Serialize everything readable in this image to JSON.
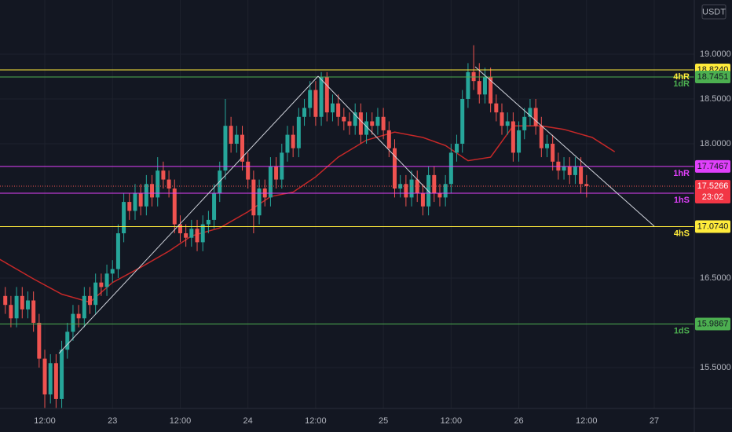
{
  "chart_data": {
    "type": "candlestick",
    "currency": "USDT",
    "up_color": "#26a69a",
    "down_color": "#ef5350",
    "xlim": [
      4.064,
      127.097
    ],
    "ylim": [
      15.044,
      19.605
    ],
    "yticks": [
      {
        "value": 15.5,
        "label": "15.5000"
      },
      {
        "value": 16.5,
        "label": "16.5000"
      },
      {
        "value": 18,
        "label": "18.0000"
      },
      {
        "value": 18.5,
        "label": "18.5000"
      },
      {
        "value": 19,
        "label": "19.0000"
      }
    ],
    "xticks": [
      {
        "value": 12,
        "label": "12:00"
      },
      {
        "value": 24,
        "label": "23"
      },
      {
        "value": 36,
        "label": "12:00"
      },
      {
        "value": 48,
        "label": "24"
      },
      {
        "value": 60,
        "label": "12:00"
      },
      {
        "value": 72,
        "label": "25"
      },
      {
        "value": 84,
        "label": "12:00"
      },
      {
        "value": 96,
        "label": "26"
      },
      {
        "value": 108,
        "label": "12:00"
      },
      {
        "value": 120,
        "label": "27"
      }
    ],
    "x": [
      5,
      6,
      7,
      8,
      9,
      10,
      11,
      12,
      13,
      14,
      15,
      16,
      17,
      18,
      19,
      20,
      21,
      22,
      23,
      24,
      25,
      26,
      27,
      28,
      29,
      30,
      31,
      32,
      33,
      34,
      35,
      36,
      37,
      38,
      39,
      40,
      41,
      42,
      43,
      44,
      45,
      46,
      47,
      48,
      49,
      50,
      51,
      52,
      53,
      54,
      55,
      56,
      57,
      58,
      59,
      60,
      61,
      62,
      63,
      64,
      65,
      66,
      67,
      68,
      69,
      70,
      71,
      72,
      73,
      74,
      75,
      76,
      77,
      78,
      79,
      80,
      81,
      82,
      83,
      84,
      85,
      86,
      87,
      88,
      89,
      90,
      91,
      92,
      93,
      94,
      95,
      96,
      97,
      98,
      99,
      100,
      101,
      102,
      103,
      104,
      105,
      106,
      107,
      108
    ],
    "open": [
      16.3,
      16.2,
      16.05,
      16.3,
      16.15,
      16.25,
      16.0,
      15.6,
      15.2,
      15.55,
      15.15,
      15.7,
      15.9,
      16.1,
      16.05,
      16.3,
      16.2,
      16.45,
      16.4,
      16.55,
      16.6,
      17.0,
      17.35,
      17.25,
      17.45,
      17.3,
      17.55,
      17.4,
      17.7,
      17.6,
      17.5,
      17.1,
      17.0,
      16.95,
      17.05,
      16.9,
      17.1,
      17.15,
      17.45,
      17.7,
      18.2,
      18.0,
      18.1,
      17.8,
      17.6,
      17.2,
      17.5,
      17.4,
      17.75,
      17.6,
      17.9,
      18.1,
      17.95,
      18.3,
      18.4,
      18.6,
      18.3,
      18.75,
      18.35,
      18.45,
      18.3,
      18.25,
      18.2,
      18.35,
      18.1,
      18.25,
      18.2,
      18.3,
      18.15,
      17.95,
      17.5,
      17.55,
      17.4,
      17.6,
      17.45,
      17.3,
      17.65,
      17.45,
      17.4,
      17.55,
      17.9,
      18.0,
      18.5,
      18.8,
      18.7,
      18.55,
      18.75,
      18.45,
      18.35,
      18.2,
      18.25,
      17.9,
      18.15,
      18.3,
      18.4,
      18.2,
      17.95,
      18.0,
      17.8,
      17.7,
      17.75,
      17.65,
      17.75,
      17.55
    ],
    "high": [
      16.4,
      16.3,
      16.4,
      16.4,
      16.35,
      16.35,
      16.1,
      15.7,
      15.65,
      15.65,
      15.8,
      16.0,
      16.2,
      16.2,
      16.4,
      16.4,
      16.55,
      16.55,
      16.65,
      16.7,
      17.1,
      17.45,
      17.45,
      17.55,
      17.55,
      17.65,
      17.65,
      17.85,
      17.8,
      17.7,
      17.6,
      17.2,
      17.1,
      17.15,
      17.15,
      17.2,
      17.25,
      17.55,
      17.8,
      18.5,
      18.3,
      18.2,
      18.2,
      17.9,
      17.7,
      17.6,
      17.6,
      17.85,
      17.85,
      18.0,
      18.2,
      18.2,
      18.4,
      18.5,
      18.7,
      18.7,
      18.8,
      18.8,
      18.55,
      18.55,
      18.4,
      18.35,
      18.45,
      18.45,
      18.35,
      18.35,
      18.4,
      18.4,
      18.25,
      18.05,
      17.65,
      17.65,
      17.7,
      17.7,
      17.55,
      17.75,
      17.75,
      17.55,
      17.65,
      18.0,
      18.1,
      18.6,
      18.9,
      19.1,
      18.9,
      18.85,
      18.85,
      18.55,
      18.45,
      18.35,
      18.35,
      18.25,
      18.4,
      18.5,
      18.5,
      18.3,
      18.1,
      18.1,
      17.9,
      17.85,
      17.85,
      17.85,
      17.85,
      17.65
    ],
    "low": [
      16.1,
      15.95,
      15.95,
      16.05,
      16.05,
      15.9,
      15.5,
      15.05,
      15.1,
      15.05,
      15.05,
      15.6,
      15.8,
      15.95,
      15.95,
      16.1,
      16.1,
      16.3,
      16.3,
      16.45,
      16.5,
      16.9,
      17.15,
      17.15,
      17.2,
      17.2,
      17.3,
      17.3,
      17.5,
      17.4,
      17.0,
      16.9,
      16.85,
      16.85,
      16.8,
      16.8,
      17.0,
      17.05,
      17.35,
      17.6,
      17.9,
      17.9,
      17.7,
      17.5,
      17.0,
      17.1,
      17.3,
      17.3,
      17.5,
      17.5,
      17.8,
      17.85,
      17.85,
      18.2,
      18.3,
      18.2,
      18.2,
      18.25,
      18.25,
      18.2,
      18.15,
      18.1,
      18.1,
      18.0,
      18.0,
      18.1,
      18.1,
      18.05,
      17.85,
      17.4,
      17.4,
      17.3,
      17.3,
      17.35,
      17.2,
      17.2,
      17.35,
      17.3,
      17.3,
      17.45,
      17.8,
      17.9,
      18.4,
      18.6,
      18.45,
      18.45,
      18.35,
      18.25,
      18.1,
      18.1,
      17.8,
      17.8,
      18.05,
      18.2,
      18.1,
      17.85,
      17.85,
      17.7,
      17.6,
      17.6,
      17.55,
      17.55,
      17.45,
      17.4
    ],
    "close": [
      16.2,
      16.05,
      16.3,
      16.15,
      16.25,
      16.0,
      15.6,
      15.2,
      15.55,
      15.15,
      15.7,
      15.9,
      16.1,
      16.05,
      16.3,
      16.2,
      16.45,
      16.4,
      16.55,
      16.6,
      17.0,
      17.35,
      17.25,
      17.45,
      17.3,
      17.55,
      17.4,
      17.7,
      17.6,
      17.5,
      17.1,
      17.0,
      16.95,
      17.05,
      16.9,
      17.1,
      17.15,
      17.45,
      17.7,
      18.2,
      18.0,
      18.1,
      17.8,
      17.6,
      17.2,
      17.5,
      17.4,
      17.75,
      17.6,
      17.9,
      18.1,
      17.95,
      18.3,
      18.4,
      18.6,
      18.3,
      18.75,
      18.35,
      18.45,
      18.3,
      18.25,
      18.2,
      18.35,
      18.1,
      18.25,
      18.2,
      18.3,
      18.15,
      17.95,
      17.5,
      17.55,
      17.4,
      17.6,
      17.45,
      17.3,
      17.65,
      17.45,
      17.4,
      17.55,
      17.9,
      18.0,
      18.5,
      18.8,
      18.7,
      18.55,
      18.75,
      18.45,
      18.35,
      18.2,
      18.25,
      17.9,
      18.15,
      18.3,
      18.4,
      18.2,
      17.95,
      18.0,
      17.8,
      17.7,
      17.75,
      17.65,
      17.75,
      17.55,
      17.5266
    ],
    "countdown": "23:02",
    "ma": {
      "color": "#c62828",
      "x": [
        4,
        10,
        15,
        20,
        24,
        29,
        34,
        38,
        43,
        48,
        52,
        56,
        60,
        64,
        69,
        74,
        79,
        83,
        87,
        91,
        95,
        100,
        104,
        109,
        113
      ],
      "values": [
        16.71,
        16.49,
        16.32,
        16.23,
        16.45,
        16.62,
        16.8,
        16.97,
        17.06,
        17.24,
        17.41,
        17.46,
        17.63,
        17.85,
        18.04,
        18.13,
        18.07,
        17.98,
        17.81,
        17.85,
        18.2,
        18.2,
        18.16,
        18.07,
        17.91
      ]
    },
    "levels": [
      {
        "name": "4hR",
        "value": 18.824,
        "label": "18.8240",
        "color": "#ffeb3b"
      },
      {
        "name": "1dR",
        "value": 18.7451,
        "label": "18.7451",
        "color": "#4caf50"
      },
      {
        "name": "1hR",
        "value": 17.7467,
        "label": "17.7467",
        "color": "#e040fb"
      },
      {
        "name": "1hS",
        "value": 17.447,
        "color": "#e040fb"
      },
      {
        "name": "4hS",
        "value": 17.074,
        "label": "17.0740",
        "color": "#ffeb3b"
      },
      {
        "name": "1dS",
        "value": 15.9867,
        "label": "15.9867",
        "color": "#4caf50"
      }
    ]
  }
}
